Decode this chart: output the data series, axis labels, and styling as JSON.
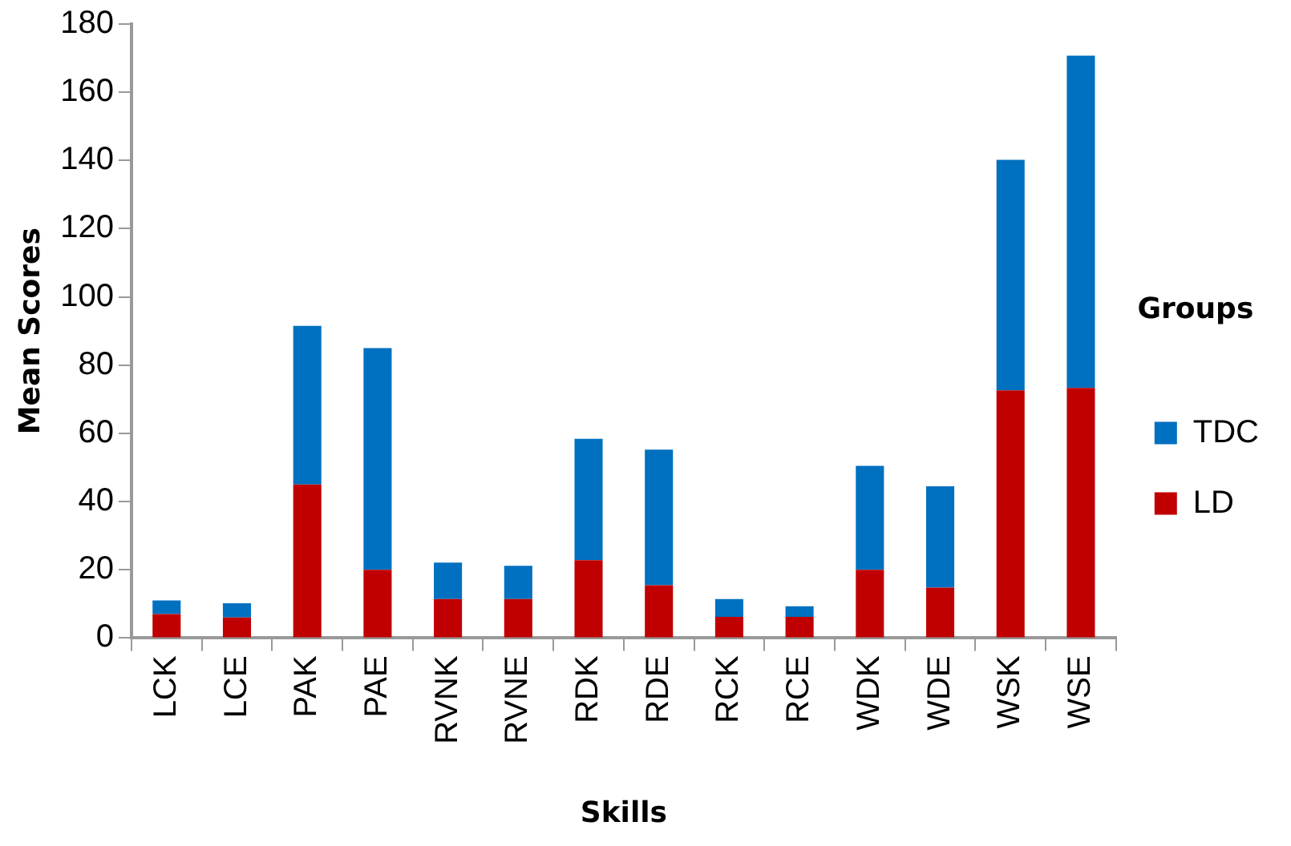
{
  "chart_data": {
    "type": "bar",
    "stacked": true,
    "xlabel": "Skills",
    "ylabel": "Mean Scores",
    "legend_title": "Groups",
    "legend": "right",
    "categories": [
      "LCK",
      "LCE",
      "PAK",
      "PAE",
      "RVNK",
      "RVNE",
      "RDK",
      "RDE",
      "RCK",
      "RCE",
      "WDK",
      "WDE",
      "WSK",
      "WSE"
    ],
    "series": [
      {
        "name": "LD",
        "color": "#c00000",
        "values": [
          7,
          6,
          45,
          20,
          11.4,
          11.4,
          22.8,
          15.5,
          6.2,
          6.2,
          20,
          14.8,
          72.6,
          73.3
        ]
      },
      {
        "name": "TDC",
        "color": "#0070c0",
        "values": [
          4,
          4.2,
          46.5,
          65,
          10.7,
          9.8,
          35.6,
          39.7,
          5.2,
          3.1,
          30.5,
          29.7,
          67.6,
          97.4
        ]
      }
    ],
    "ylim": [
      0,
      180
    ],
    "yticks": [
      0,
      20,
      40,
      60,
      80,
      100,
      120,
      140,
      160,
      180
    ],
    "grid": false
  }
}
